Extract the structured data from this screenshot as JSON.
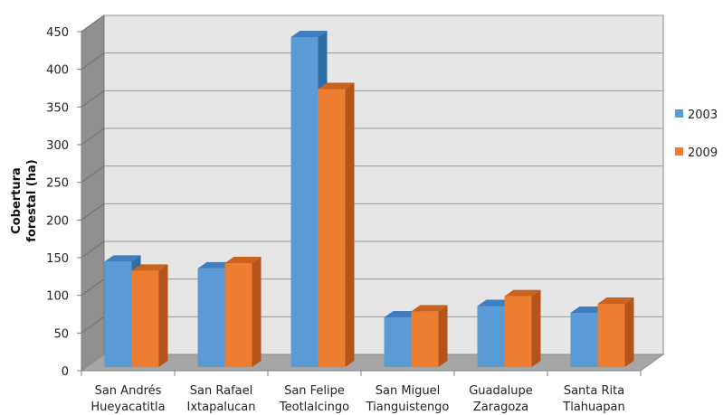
{
  "chart_data": {
    "type": "bar",
    "style": "3d-clustered-column",
    "categories": [
      [
        "San Andrés",
        "Hueyacatitla"
      ],
      [
        "San Rafael",
        "Ixtapalucan"
      ],
      [
        "San Felipe",
        "Teotlalcingo"
      ],
      [
        "San Miguel",
        "Tianguistengo"
      ],
      [
        "Guadalupe",
        "Zaragoza"
      ],
      [
        "Santa Rita",
        "Tlahuapan"
      ]
    ],
    "series": [
      {
        "name": "2003",
        "color": "#5b9bd5",
        "side_color": "#2e6da4",
        "top_color": "#3f7fbf",
        "values": [
          140,
          131,
          438,
          66,
          81,
          72
        ]
      },
      {
        "name": "2009",
        "color": "#ed7d31",
        "side_color": "#b4531a",
        "top_color": "#c9611f",
        "values": [
          128,
          138,
          369,
          74,
          94,
          84
        ]
      }
    ],
    "ylabel": [
      "Cobertura",
      "forestal (ha)"
    ],
    "ylim": [
      0,
      450
    ],
    "yticks": [
      0,
      50,
      100,
      150,
      200,
      250,
      300,
      350,
      400,
      450
    ],
    "grid": true,
    "legend_position": "right",
    "wall_color": "#e6e6e6",
    "floor_color": "#a6a6a6"
  }
}
